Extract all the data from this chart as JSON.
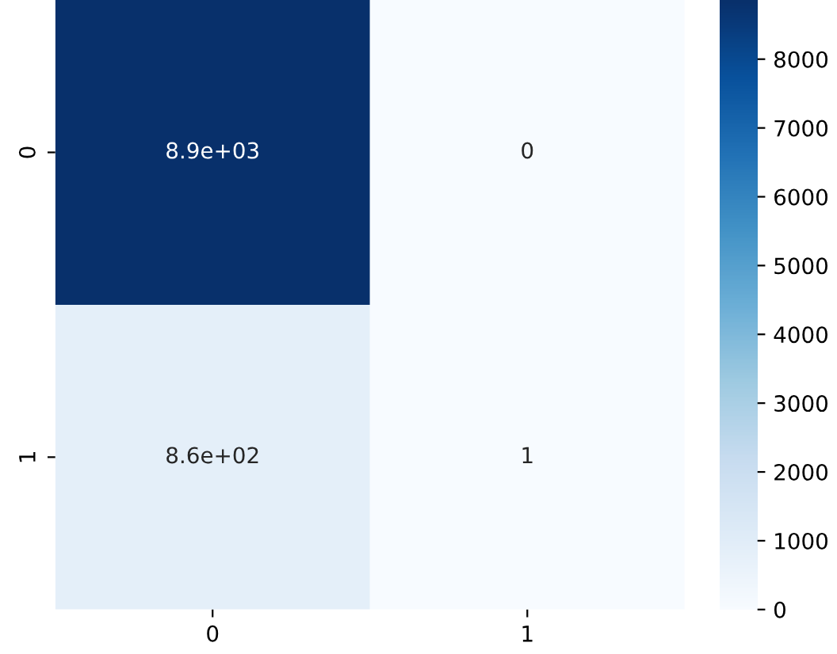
{
  "chart_data": {
    "type": "heatmap",
    "categories": [
      "0",
      "1"
    ],
    "y_categories": [
      "0",
      "1"
    ],
    "cells": [
      [
        8860,
        0
      ],
      [
        860,
        1
      ]
    ],
    "cell_labels": [
      [
        "8.9e+03",
        "0"
      ],
      [
        "8.6e+02",
        "1"
      ]
    ],
    "clim": [
      0,
      8860
    ],
    "cticks": [
      0,
      1000,
      2000,
      3000,
      4000,
      5000,
      6000,
      7000,
      8000
    ]
  }
}
